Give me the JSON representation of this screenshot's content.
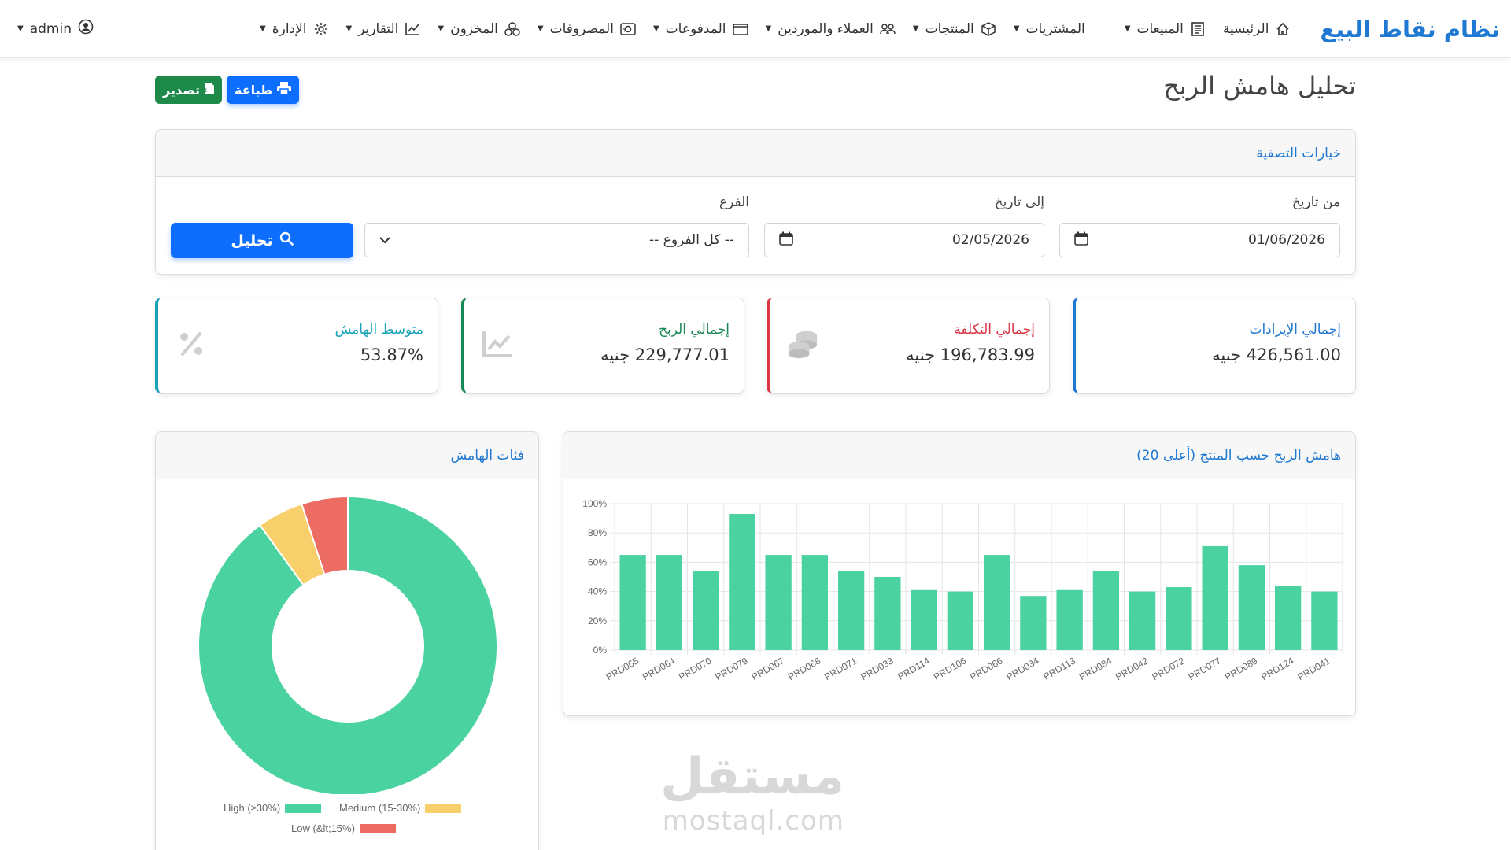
{
  "navbar": {
    "brand": "نظام نقاط البيع",
    "items": [
      {
        "label": "الرئيسية",
        "icon": "home-icon",
        "dropdown": false
      },
      {
        "label": "المبيعات",
        "icon": "receipt-icon",
        "dropdown": true
      },
      {
        "label": "المشتريات",
        "icon": "cart-icon",
        "dropdown": true
      },
      {
        "label": "المنتجات",
        "icon": "box-icon",
        "dropdown": true
      },
      {
        "label": "العملاء والموردين",
        "icon": "people-icon",
        "dropdown": true
      },
      {
        "label": "المدفوعات",
        "icon": "wallet-icon",
        "dropdown": true
      },
      {
        "label": "المصروفات",
        "icon": "cash-icon",
        "dropdown": true
      },
      {
        "label": "المخزون",
        "icon": "boxes-icon",
        "dropdown": true
      },
      {
        "label": "التقارير",
        "icon": "chart-line-icon",
        "dropdown": true
      },
      {
        "label": "الإدارة",
        "icon": "gear-icon",
        "dropdown": true
      }
    ],
    "user": "admin"
  },
  "page": {
    "title": "تحليل هامش الربح",
    "export_label": "تصدير",
    "print_label": "طباعة"
  },
  "filters": {
    "header": "خيارات التصفية",
    "from_label": "من تاريخ",
    "from_value": "01/06/2026",
    "to_label": "إلى تاريخ",
    "to_value": "02/05/2026",
    "branch_label": "الفرع",
    "branch_value": "-- كل الفروع --",
    "analyze_label": "تحليل"
  },
  "stats": [
    {
      "label": "إجمالي الإيرادات",
      "value": "426,561.00 جنيه",
      "color": "#1f78d1",
      "icon": "dollar-icon"
    },
    {
      "label": "إجمالي التكلفة",
      "value": "196,783.99 جنيه",
      "color": "#dc3545",
      "icon": "coins-icon"
    },
    {
      "label": "إجمالي الربح",
      "value": "229,777.01 جنيه",
      "color": "#198754",
      "icon": "chart-line-icon"
    },
    {
      "label": "متوسط الهامش",
      "value": "53.87%",
      "color": "#17a2b8",
      "icon": "percent-icon"
    }
  ],
  "donut": {
    "title": "فئات الهامش"
  },
  "bar": {
    "title": "هامش الربح حسب المنتج (أعلى 20)"
  },
  "chart_data": [
    {
      "type": "pie",
      "variant": "doughnut",
      "categories": [
        "High (≥30%)",
        "Medium (15-30%)",
        "Low (&lt;15%)"
      ],
      "values": [
        90,
        5,
        5
      ],
      "colors": [
        "#4ad3a0",
        "#f7cf6b",
        "#ec6b63"
      ],
      "legend": "bottom"
    },
    {
      "type": "bar",
      "categories": [
        "PRD065",
        "PRD064",
        "PRD070",
        "PRD079",
        "PRD067",
        "PRD068",
        "PRD071",
        "PRD033",
        "PRD114",
        "PRD106",
        "PRD066",
        "PRD034",
        "PRD113",
        "PRD084",
        "PRD042",
        "PRD072",
        "PRD077",
        "PRD089",
        "PRD124",
        "PRD041"
      ],
      "values": [
        65,
        65,
        54,
        93,
        65,
        65,
        54,
        50,
        41,
        40,
        65,
        37,
        41,
        54,
        40,
        43,
        71,
        58,
        44,
        40
      ],
      "ylim": [
        0,
        100
      ],
      "yticks": [
        "0%",
        "20%",
        "40%",
        "60%",
        "80%",
        "100%"
      ],
      "color": "#4ad3a0",
      "grid": true
    }
  ],
  "watermark": {
    "ar": "مستقل",
    "en": "mostaql.com"
  }
}
